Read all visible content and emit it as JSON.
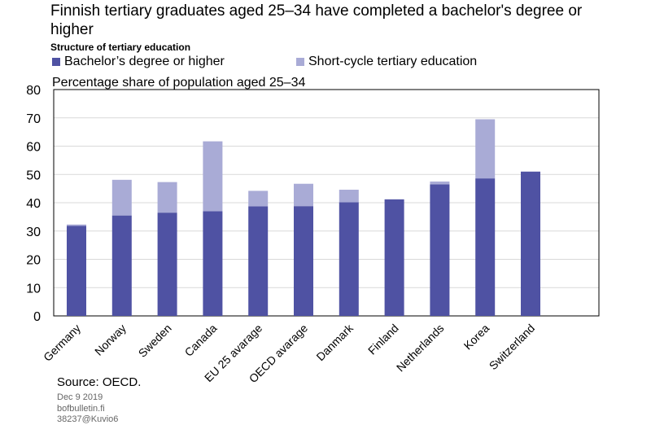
{
  "title": "Finnish tertiary graduates aged 25–34 have completed a bachelor's degree or higher",
  "subtitle": "Structure of tertiary education",
  "legend": {
    "bachelor": "Bachelor’s degree or higher",
    "short": "Short-cycle tertiary education"
  },
  "colors": {
    "bachelor": "#4f52a3",
    "short": "#a9abd6"
  },
  "chart_data": {
    "type": "bar",
    "stacked": true,
    "ylabel": "Percentage share of population aged 25–34",
    "ylim": [
      0,
      80
    ],
    "yticks": [
      0,
      10,
      20,
      30,
      40,
      50,
      60,
      70,
      80
    ],
    "grid": true,
    "legend_position": "top",
    "categories": [
      "Germany",
      "Norway",
      "Sweden",
      "Canada",
      "EU 25 avarage",
      "OECD avarage",
      "Danmark",
      "Finland",
      "Netherlands",
      "Korea",
      "Switzerland"
    ],
    "series": [
      {
        "name": "Bachelor’s degree or higher",
        "values": [
          31.8,
          35.5,
          36.5,
          37,
          38.7,
          38.8,
          40.2,
          41.2,
          46.5,
          48.6,
          51
        ]
      },
      {
        "name": "Short-cycle tertiary education",
        "values": [
          0.5,
          12.6,
          10.8,
          24.7,
          5.5,
          7.9,
          4.4,
          0,
          1,
          20.9,
          0
        ]
      }
    ]
  },
  "source": "Source: OECD.",
  "meta": {
    "date": "Dec 9 2019",
    "site": "bofbulletin.fi",
    "id": "38237@Kuvio6"
  }
}
